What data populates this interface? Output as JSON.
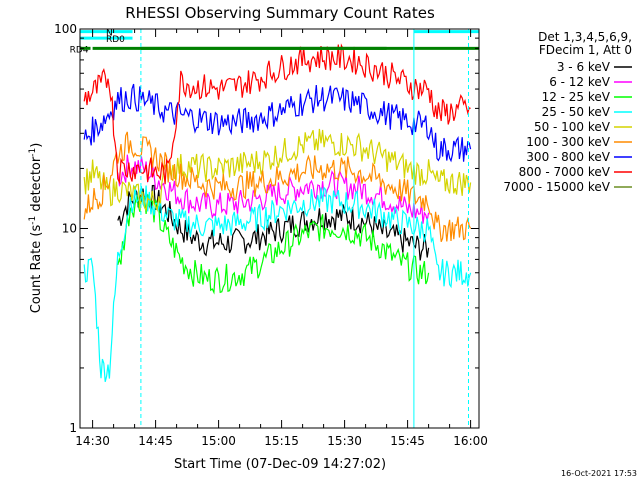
{
  "chart_data": {
    "type": "line",
    "title": "RHESSI Observing Summary Count Rates",
    "xlabel": "Start Time (07-Dec-09 14:27:02)",
    "ylabel": "Count Rate (s⁻¹ detector⁻¹)",
    "ylabel_main": "Count Rate (s",
    "ylabel_sup1": "-1",
    "ylabel_mid": " detector",
    "ylabel_sup2": "-1",
    "ylabel_end": ")",
    "yscale": "log",
    "ylim": [
      1,
      100
    ],
    "xlim_minutes": [
      27,
      122
    ],
    "x_unit": "minutes after 14:00 UT",
    "y_ticks": [
      {
        "value": 1,
        "label": "1"
      },
      {
        "value": 10,
        "label": "10"
      },
      {
        "value": 100,
        "label": "100"
      }
    ],
    "x_ticks": [
      {
        "value": 30,
        "label": "14:30"
      },
      {
        "value": 45,
        "label": "14:45"
      },
      {
        "value": 60,
        "label": "15:00"
      },
      {
        "value": 75,
        "label": "15:15"
      },
      {
        "value": 90,
        "label": "15:30"
      },
      {
        "value": 105,
        "label": "15:45"
      },
      {
        "value": 120,
        "label": "16:00"
      }
    ],
    "legend_header": [
      "Det 1,3,4,5,6,9,",
      "FDecim 1, Att 0"
    ],
    "legend_position": "top-right, outside plot",
    "series": [
      {
        "name": "3 - 6 keV",
        "color": "#000000",
        "x": [
          36,
          39,
          42,
          45,
          48,
          51,
          54,
          57,
          60,
          63,
          66,
          69,
          72,
          75,
          78,
          81,
          84,
          87,
          90,
          93,
          96,
          99,
          102,
          105,
          108,
          110
        ],
        "y": [
          11,
          14,
          15,
          14,
          12,
          10,
          9,
          8.5,
          8.5,
          8.5,
          8.7,
          9,
          9.5,
          10,
          10.5,
          11,
          11.5,
          11.5,
          11.5,
          11.2,
          10.5,
          9.5,
          9,
          8.5,
          8,
          8
        ]
      },
      {
        "name": "6 - 12 keV",
        "color": "#ff00ff",
        "x": [
          36,
          39,
          42,
          45,
          48,
          51,
          54,
          57,
          60,
          63,
          66,
          69,
          72,
          75,
          78,
          81,
          84,
          87,
          90,
          93,
          96,
          99,
          102,
          105,
          108,
          110
        ],
        "y": [
          18,
          21,
          20,
          18,
          16,
          14.5,
          13.5,
          13,
          13,
          13.2,
          13.5,
          14,
          14.5,
          15.2,
          15.8,
          16.3,
          16.6,
          16.6,
          16.4,
          16,
          15.3,
          14.5,
          13.5,
          12.5,
          12,
          12
        ]
      },
      {
        "name": "12 - 25 keV",
        "color": "#00ff00",
        "x": [
          36,
          39,
          42,
          45,
          48,
          51,
          54,
          57,
          60,
          63,
          66,
          69,
          72,
          75,
          78,
          81,
          84,
          87,
          90,
          93,
          96,
          99,
          102,
          105,
          108,
          110
        ],
        "y": [
          6,
          13,
          14.5,
          12,
          9,
          7,
          6,
          5.6,
          5.6,
          5.7,
          6,
          6.5,
          7.2,
          8,
          8.8,
          9.5,
          10,
          10.2,
          10,
          9.5,
          8.8,
          8,
          7,
          6.5,
          6,
          6
        ]
      },
      {
        "name": "25 - 50 keV",
        "color": "#00ffff",
        "x": [
          28,
          30,
          32,
          34,
          36,
          39,
          42,
          45,
          48,
          51,
          54,
          57,
          60,
          63,
          66,
          69,
          72,
          75,
          78,
          81,
          84,
          87,
          90,
          93,
          96,
          99,
          102,
          105,
          108,
          110,
          112,
          114,
          116,
          118,
          120
        ],
        "y": [
          6,
          6.5,
          2,
          2,
          7,
          14,
          14.5,
          13,
          11.5,
          10.8,
          10.5,
          10.3,
          10.3,
          10.5,
          10.8,
          11.2,
          11.8,
          12.5,
          13,
          13.5,
          13.7,
          13.7,
          13.5,
          13.2,
          12.5,
          11.8,
          11,
          10.5,
          10,
          10,
          6,
          6,
          6,
          6,
          6
        ]
      },
      {
        "name": "50 - 100 keV",
        "color": "#d4d400",
        "x": [
          28,
          30,
          32,
          34,
          36,
          39,
          42,
          45,
          48,
          51,
          54,
          57,
          60,
          63,
          66,
          69,
          72,
          75,
          78,
          81,
          84,
          87,
          90,
          93,
          96,
          99,
          102,
          105,
          108,
          110,
          112,
          114,
          116,
          118,
          120
        ],
        "y": [
          17,
          19,
          17,
          15,
          16,
          15,
          14,
          13.5,
          20,
          20.5,
          20.5,
          20,
          20,
          20.5,
          21,
          21.5,
          22.5,
          24,
          25.5,
          26.5,
          27,
          27,
          26.5,
          26,
          24.5,
          23,
          21.5,
          20,
          19,
          19,
          17,
          17,
          17,
          17,
          17
        ]
      },
      {
        "name": "100 - 300 keV",
        "color": "#ff8c00",
        "x": [
          28,
          30,
          32,
          34,
          36,
          39,
          42,
          45,
          48,
          51,
          54,
          57,
          60,
          63,
          66,
          69,
          72,
          75,
          78,
          81,
          84,
          87,
          90,
          93,
          96,
          99,
          102,
          105,
          108,
          110,
          112,
          114,
          116,
          118,
          120
        ],
        "y": [
          12,
          14,
          15,
          18,
          24,
          27,
          25,
          23,
          20,
          18.5,
          17.5,
          16.5,
          16.2,
          16.2,
          16.5,
          17,
          17.5,
          18.2,
          19,
          19.6,
          20,
          20,
          19.8,
          19.3,
          18.3,
          17,
          16,
          15,
          14,
          14,
          10,
          10,
          10,
          10,
          10
        ]
      },
      {
        "name": "300 - 800 keV",
        "color": "#0000ff",
        "x": [
          28,
          30,
          32,
          34,
          36,
          39,
          42,
          45,
          48,
          51,
          54,
          57,
          60,
          63,
          66,
          69,
          72,
          75,
          78,
          81,
          84,
          87,
          90,
          93,
          96,
          99,
          102,
          105,
          108,
          110,
          112,
          114,
          116,
          118,
          120
        ],
        "y": [
          28,
          31,
          34,
          38,
          44,
          46,
          44,
          41,
          38,
          37,
          36,
          35,
          34,
          34,
          34.5,
          35.5,
          37,
          39,
          41.5,
          43.5,
          45,
          45,
          44,
          42.5,
          40,
          38,
          36,
          34.5,
          33,
          33,
          25,
          25,
          25,
          25,
          25
        ]
      },
      {
        "name": "800 - 7000 keV",
        "color": "#ff0000",
        "x": [
          28,
          30,
          32,
          34,
          36,
          39,
          42,
          45,
          48,
          51,
          54,
          57,
          60,
          63,
          66,
          69,
          72,
          75,
          78,
          81,
          84,
          87,
          90,
          93,
          96,
          99,
          102,
          105,
          108,
          110,
          112,
          114,
          116,
          118,
          120
        ],
        "y": [
          45,
          48,
          52,
          58,
          20,
          20,
          20,
          19,
          19,
          55,
          52,
          51,
          50,
          51,
          53,
          56,
          60,
          64,
          68,
          71,
          72,
          72,
          71,
          69,
          65,
          61,
          57,
          53,
          50,
          50,
          38,
          38,
          39,
          40,
          40
        ]
      },
      {
        "name": "7000 - 15000 keV",
        "color": "#6b8e23",
        "x": [],
        "y": []
      }
    ],
    "annotations": [
      {
        "type": "attenuator_bar",
        "label": "RD0",
        "color": "#00ffff",
        "x_start": 27,
        "x_end": 39.5,
        "y": 90
      },
      {
        "type": "attenuator_bar",
        "label": "N",
        "color": "#00ffff",
        "x_start": 27,
        "x_end": 39.5,
        "y": 97
      },
      {
        "type": "attenuator_bar",
        "label": "",
        "color": "#00ffff",
        "x_start": 106.5,
        "x_end": 122,
        "y": 97
      },
      {
        "type": "attenuator_bar",
        "label": "RD4",
        "color": "#008000",
        "x_start": 30,
        "x_end": 122,
        "y": 80
      },
      {
        "type": "attenuator_bar",
        "label": "",
        "color": "#008000",
        "x_start": 27,
        "x_end": 29.5,
        "y": 80
      },
      {
        "type": "attenuator_bar",
        "label": "",
        "color": "#008000",
        "x_start": 41.5,
        "x_end": 100,
        "y": 80
      },
      {
        "type": "vertical_line",
        "color": "#00ffff",
        "style": "dashed",
        "x": 41.5
      },
      {
        "type": "vertical_line",
        "color": "#00ffff",
        "style": "dashed",
        "x": 119.5
      },
      {
        "type": "vertical_line",
        "color": "#00ffff",
        "style": "solid",
        "x": 106.5
      }
    ],
    "grid": false
  },
  "footer": {
    "timestamp": "16-Oct-2021 17:53"
  }
}
